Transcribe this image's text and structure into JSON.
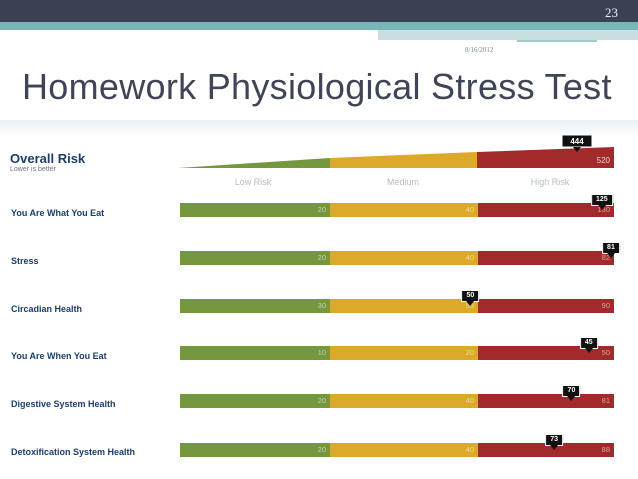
{
  "slide": {
    "number": "23",
    "date": "8/16/2012",
    "title": "Homework Physiological Stress Test"
  },
  "overall": {
    "label": "Overall Risk",
    "sublabel": "Lower is better",
    "score": "444",
    "max": "520",
    "zones": [
      "Low Risk",
      "Medium",
      "High Risk"
    ]
  },
  "rows": [
    {
      "label": "You Are What You Eat",
      "low": "20",
      "medium": "40",
      "high": "130",
      "score": "125",
      "marker_fraction": 0.972
    },
    {
      "label": "Stress",
      "low": "20",
      "medium": "40",
      "high": "82",
      "score": "81",
      "marker_fraction": 0.993
    },
    {
      "label": "Circadian Health",
      "low": "30",
      "medium": "59",
      "high": "90",
      "score": "50",
      "marker_fraction": 0.669
    },
    {
      "label": "You Are When You Eat",
      "low": "10",
      "medium": "20",
      "high": "50",
      "score": "45",
      "marker_fraction": 0.942
    },
    {
      "label": "Digestive System Health",
      "low": "20",
      "medium": "40",
      "high": "81",
      "score": "70",
      "marker_fraction": 0.902
    },
    {
      "label": "Detoxification System Health",
      "low": "20",
      "medium": "40",
      "high": "88",
      "score": "73",
      "marker_fraction": 0.862
    }
  ],
  "colors": {
    "low": "#75973e",
    "medium": "#dca92a",
    "high": "#a32a2a",
    "label": "#1d3d66",
    "title": "#3f4556"
  }
}
